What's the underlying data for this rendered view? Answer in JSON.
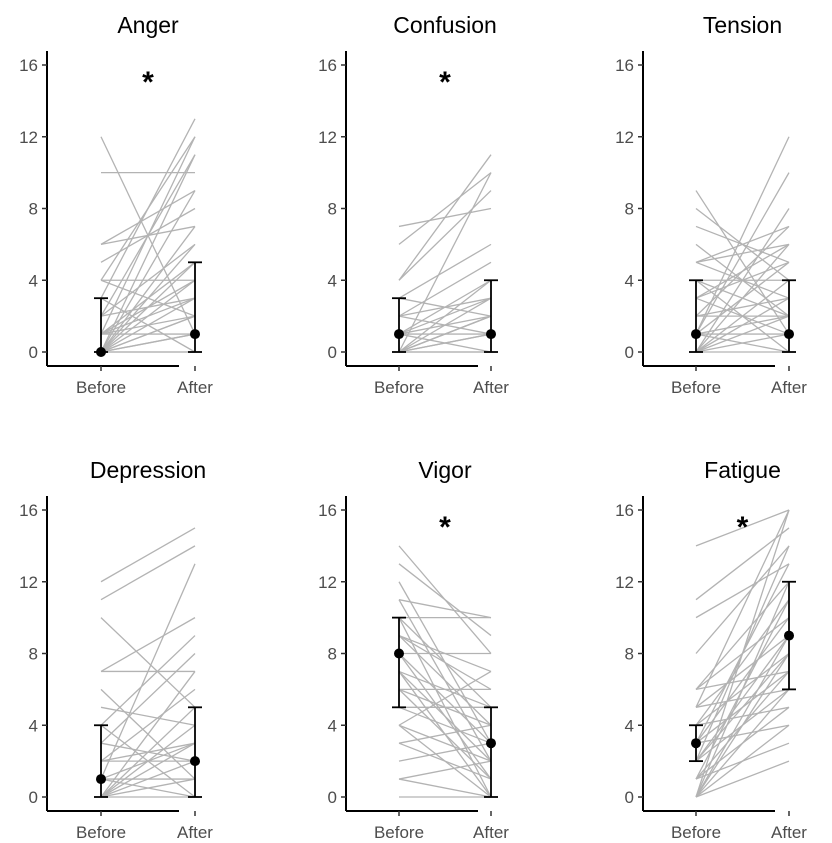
{
  "chart_data": [
    {
      "type": "line",
      "title": "Anger",
      "categories": [
        "Before",
        "After"
      ],
      "ylim": [
        0,
        16
      ],
      "yticks": [
        0,
        4,
        8,
        12,
        16
      ],
      "significant": true,
      "significance_marker": "*",
      "summary": {
        "before": {
          "median": 0,
          "low": 0,
          "high": 3
        },
        "after": {
          "median": 1,
          "low": 0,
          "high": 5
        }
      },
      "subjects": [
        [
          12,
          1
        ],
        [
          10,
          10
        ],
        [
          6,
          7
        ],
        [
          6,
          9
        ],
        [
          5,
          8
        ],
        [
          4,
          4
        ],
        [
          4,
          2
        ],
        [
          4,
          12
        ],
        [
          3,
          13
        ],
        [
          3,
          0
        ],
        [
          2,
          11
        ],
        [
          2,
          6
        ],
        [
          2,
          3
        ],
        [
          1,
          12
        ],
        [
          1,
          3
        ],
        [
          1,
          5
        ],
        [
          1,
          4
        ],
        [
          1,
          1
        ],
        [
          1,
          2
        ],
        [
          0,
          2
        ],
        [
          0,
          3
        ],
        [
          0,
          7
        ],
        [
          0,
          1
        ],
        [
          0,
          5
        ],
        [
          0,
          9
        ],
        [
          0,
          0
        ],
        [
          0,
          6
        ],
        [
          0,
          2
        ],
        [
          0,
          4
        ],
        [
          0,
          0
        ],
        [
          0,
          11
        ],
        [
          0,
          1
        ]
      ]
    },
    {
      "type": "line",
      "title": "Confusion",
      "categories": [
        "Before",
        "After"
      ],
      "ylim": [
        0,
        16
      ],
      "yticks": [
        0,
        4,
        8,
        12,
        16
      ],
      "significant": true,
      "significance_marker": "*",
      "summary": {
        "before": {
          "median": 1,
          "low": 0,
          "high": 3
        },
        "after": {
          "median": 1,
          "low": 0,
          "high": 4
        }
      },
      "subjects": [
        [
          7,
          8
        ],
        [
          6,
          10
        ],
        [
          4,
          11
        ],
        [
          4,
          9
        ],
        [
          3,
          6
        ],
        [
          3,
          2
        ],
        [
          2,
          5
        ],
        [
          2,
          3
        ],
        [
          2,
          1
        ],
        [
          1,
          4
        ],
        [
          1,
          2
        ],
        [
          1,
          0
        ],
        [
          1,
          3
        ],
        [
          1,
          1
        ],
        [
          0,
          1
        ],
        [
          0,
          2
        ],
        [
          0,
          0
        ],
        [
          0,
          3
        ],
        [
          0,
          10
        ],
        [
          0,
          1
        ],
        [
          0,
          2
        ],
        [
          0,
          0
        ],
        [
          0,
          4
        ],
        [
          0,
          2
        ]
      ]
    },
    {
      "type": "line",
      "title": "Tension",
      "categories": [
        "Before",
        "After"
      ],
      "ylim": [
        0,
        16
      ],
      "yticks": [
        0,
        4,
        8,
        12,
        16
      ],
      "significant": false,
      "significance_marker": "",
      "summary": {
        "before": {
          "median": 1,
          "low": 0,
          "high": 4
        },
        "after": {
          "median": 1,
          "low": 0,
          "high": 4
        }
      },
      "subjects": [
        [
          9,
          1
        ],
        [
          8,
          4
        ],
        [
          7,
          5
        ],
        [
          6,
          2
        ],
        [
          5,
          6
        ],
        [
          5,
          7
        ],
        [
          5,
          3
        ],
        [
          4,
          0
        ],
        [
          4,
          4
        ],
        [
          4,
          2
        ],
        [
          3,
          5
        ],
        [
          3,
          1
        ],
        [
          3,
          6
        ],
        [
          2,
          3
        ],
        [
          2,
          2
        ],
        [
          2,
          7
        ],
        [
          1,
          12
        ],
        [
          1,
          10
        ],
        [
          1,
          2
        ],
        [
          1,
          0
        ],
        [
          1,
          5
        ],
        [
          1,
          1
        ],
        [
          0,
          4
        ],
        [
          0,
          3
        ],
        [
          0,
          6
        ],
        [
          0,
          8
        ],
        [
          0,
          1
        ],
        [
          0,
          0
        ],
        [
          0,
          2
        ]
      ]
    },
    {
      "type": "line",
      "title": "Depression",
      "categories": [
        "Before",
        "After"
      ],
      "ylim": [
        0,
        16
      ],
      "yticks": [
        0,
        4,
        8,
        12,
        16
      ],
      "significant": false,
      "significance_marker": "",
      "summary": {
        "before": {
          "median": 1,
          "low": 0,
          "high": 4
        },
        "after": {
          "median": 2,
          "low": 0,
          "high": 5
        }
      },
      "subjects": [
        [
          12,
          15
        ],
        [
          11,
          14
        ],
        [
          10,
          5
        ],
        [
          7,
          7
        ],
        [
          7,
          10
        ],
        [
          6,
          1
        ],
        [
          5,
          4
        ],
        [
          4,
          9
        ],
        [
          4,
          0
        ],
        [
          3,
          2
        ],
        [
          3,
          8
        ],
        [
          2,
          3
        ],
        [
          2,
          2
        ],
        [
          2,
          6
        ],
        [
          1,
          13
        ],
        [
          1,
          1
        ],
        [
          1,
          0
        ],
        [
          1,
          3
        ],
        [
          0,
          7
        ],
        [
          0,
          2
        ],
        [
          0,
          4
        ],
        [
          0,
          1
        ],
        [
          0,
          0
        ],
        [
          0,
          3
        ],
        [
          0,
          5
        ]
      ]
    },
    {
      "type": "line",
      "title": "Vigor",
      "categories": [
        "Before",
        "After"
      ],
      "ylim": [
        0,
        16
      ],
      "yticks": [
        0,
        4,
        8,
        12,
        16
      ],
      "significant": true,
      "significance_marker": "*",
      "summary": {
        "before": {
          "median": 8,
          "low": 5,
          "high": 10
        },
        "after": {
          "median": 3,
          "low": 0,
          "high": 5
        }
      },
      "subjects": [
        [
          14,
          8
        ],
        [
          13,
          9
        ],
        [
          12,
          3
        ],
        [
          11,
          10
        ],
        [
          11,
          2
        ],
        [
          10,
          10
        ],
        [
          10,
          5
        ],
        [
          10,
          0
        ],
        [
          9,
          7
        ],
        [
          9,
          4
        ],
        [
          9,
          6
        ],
        [
          8,
          8
        ],
        [
          8,
          1
        ],
        [
          8,
          3
        ],
        [
          7,
          5
        ],
        [
          7,
          2
        ],
        [
          7,
          0
        ],
        [
          6,
          6
        ],
        [
          6,
          4
        ],
        [
          6,
          1
        ],
        [
          5,
          3
        ],
        [
          5,
          5
        ],
        [
          4,
          0
        ],
        [
          4,
          7
        ],
        [
          4,
          2
        ],
        [
          3,
          1
        ],
        [
          3,
          4
        ],
        [
          2,
          3
        ],
        [
          1,
          0
        ],
        [
          1,
          2
        ],
        [
          0,
          0
        ]
      ]
    },
    {
      "type": "line",
      "title": "Fatigue",
      "categories": [
        "Before",
        "After"
      ],
      "ylim": [
        0,
        16
      ],
      "yticks": [
        0,
        4,
        8,
        12,
        16
      ],
      "significant": true,
      "significance_marker": "*",
      "summary": {
        "before": {
          "median": 3,
          "low": 2,
          "high": 4
        },
        "after": {
          "median": 9,
          "low": 6,
          "high": 12
        }
      },
      "subjects": [
        [
          14,
          16
        ],
        [
          11,
          15
        ],
        [
          10,
          13
        ],
        [
          8,
          14
        ],
        [
          6,
          10
        ],
        [
          6,
          7
        ],
        [
          6,
          12
        ],
        [
          5,
          9
        ],
        [
          5,
          6
        ],
        [
          5,
          16
        ],
        [
          4,
          8
        ],
        [
          4,
          5
        ],
        [
          4,
          11
        ],
        [
          3,
          10
        ],
        [
          3,
          7
        ],
        [
          3,
          13
        ],
        [
          3,
          4
        ],
        [
          2,
          8
        ],
        [
          2,
          6
        ],
        [
          2,
          9
        ],
        [
          2,
          14
        ],
        [
          1,
          5
        ],
        [
          1,
          7
        ],
        [
          1,
          11
        ],
        [
          1,
          3
        ],
        [
          0,
          4
        ],
        [
          0,
          6
        ],
        [
          0,
          9
        ],
        [
          0,
          2
        ],
        [
          0,
          12
        ],
        [
          0,
          16
        ],
        [
          0,
          8
        ]
      ]
    }
  ]
}
